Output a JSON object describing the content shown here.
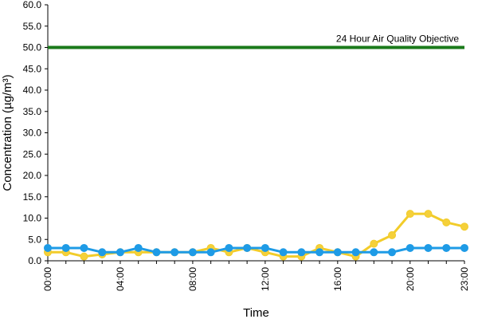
{
  "chart_data": {
    "type": "line",
    "title": "",
    "xlabel": "Time",
    "ylabel": "Concentration (µg/m³)",
    "ylim": [
      0,
      60
    ],
    "yticks": [
      "0.0",
      "5.0",
      "10.0",
      "15.0",
      "20.0",
      "25.0",
      "30.0",
      "35.0",
      "40.0",
      "45.0",
      "50.0",
      "55.0",
      "60.0"
    ],
    "x": [
      "00:00",
      "01:00",
      "02:00",
      "03:00",
      "04:00",
      "05:00",
      "06:00",
      "07:00",
      "08:00",
      "09:00",
      "10:00",
      "11:00",
      "12:00",
      "13:00",
      "14:00",
      "15:00",
      "16:00",
      "17:00",
      "18:00",
      "19:00",
      "20:00",
      "21:00",
      "22:00",
      "23:00"
    ],
    "xtick_labels": [
      "00:00",
      "04:00",
      "08:00",
      "12:00",
      "16:00",
      "20:00",
      "23:00"
    ],
    "grid": false,
    "reference_line": {
      "label": "24 Hour Air Quality Objective",
      "value": 50,
      "color": "#1a7a1a"
    },
    "series": [
      {
        "color": "#f2cc2a",
        "marker_color": "#f5d03a",
        "values": [
          2,
          2,
          1,
          1.5,
          2,
          2,
          2,
          2,
          2,
          3,
          2,
          3,
          2,
          1,
          1,
          3,
          2,
          1,
          4,
          6,
          11,
          11,
          9,
          8
        ]
      },
      {
        "color": "#1e9be6",
        "marker_color": "#1e9be6",
        "values": [
          3,
          3,
          3,
          2,
          2,
          3,
          2,
          2,
          2,
          2,
          3,
          3,
          3,
          2,
          2,
          2,
          2,
          2,
          2,
          2,
          3,
          3,
          3,
          3
        ]
      }
    ]
  }
}
